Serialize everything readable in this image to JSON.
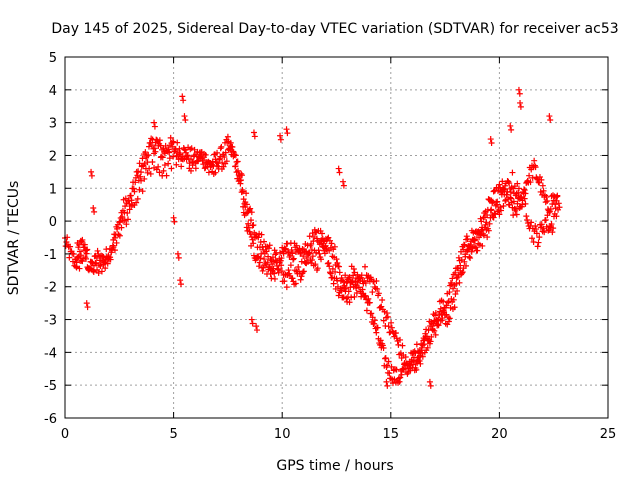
{
  "chart_data": {
    "type": "scatter",
    "title": "Day 145 of 2025, Sidereal Day-to-day VTEC variation (SDTVAR) for receiver ac53",
    "xlabel": "GPS time / hours",
    "ylabel": "SDTVAR / TECUs",
    "xlim": [
      0,
      25
    ],
    "ylim": [
      -6,
      5
    ],
    "x_ticks": [
      0,
      5,
      10,
      15,
      20,
      25
    ],
    "y_ticks": [
      -6,
      -5,
      -4,
      -3,
      -2,
      -1,
      0,
      1,
      2,
      3,
      4,
      5
    ],
    "grid": true,
    "marker": "+",
    "marker_color": "#ff0000",
    "approx_track_points": [
      [
        0.0,
        -0.6
      ],
      [
        0.3,
        -1.1
      ],
      [
        0.6,
        -1.3
      ],
      [
        0.9,
        -1.0
      ],
      [
        1.2,
        -1.5
      ],
      [
        1.5,
        -1.1
      ],
      [
        1.8,
        -1.2
      ],
      [
        2.1,
        -0.9
      ],
      [
        2.4,
        -0.3
      ],
      [
        2.7,
        0.4
      ],
      [
        3.0,
        0.6
      ],
      [
        3.3,
        1.3
      ],
      [
        3.6,
        1.8
      ],
      [
        3.9,
        2.2
      ],
      [
        4.2,
        2.4
      ],
      [
        4.5,
        2.1
      ],
      [
        4.8,
        2.3
      ],
      [
        5.1,
        2.2
      ],
      [
        5.4,
        2.1
      ],
      [
        5.7,
        2.0
      ],
      [
        6.0,
        1.9
      ],
      [
        6.3,
        2.0
      ],
      [
        6.6,
        1.7
      ],
      [
        6.9,
        1.8
      ],
      [
        7.2,
        2.0
      ],
      [
        7.5,
        2.3
      ],
      [
        7.8,
        2.0
      ],
      [
        8.1,
        1.0
      ],
      [
        8.4,
        -0.2
      ],
      [
        8.7,
        -0.9
      ],
      [
        9.0,
        -1.2
      ],
      [
        9.3,
        -1.4
      ],
      [
        9.6,
        -1.6
      ],
      [
        9.9,
        -1.2
      ],
      [
        10.2,
        -0.8
      ],
      [
        10.5,
        -0.9
      ],
      [
        10.8,
        -1.1
      ],
      [
        11.1,
        -0.9
      ],
      [
        11.4,
        -0.6
      ],
      [
        11.7,
        -0.4
      ],
      [
        12.0,
        -0.8
      ],
      [
        12.3,
        -1.6
      ],
      [
        12.6,
        -2.0
      ],
      [
        12.9,
        -1.8
      ],
      [
        13.2,
        -1.6
      ],
      [
        13.5,
        -1.9
      ],
      [
        13.8,
        -2.3
      ],
      [
        14.1,
        -2.8
      ],
      [
        14.4,
        -3.5
      ],
      [
        14.7,
        -4.2
      ],
      [
        15.0,
        -4.6
      ],
      [
        15.3,
        -4.8
      ],
      [
        15.6,
        -4.6
      ],
      [
        15.9,
        -4.3
      ],
      [
        16.2,
        -4.0
      ],
      [
        16.5,
        -3.8
      ],
      [
        16.8,
        -3.5
      ],
      [
        17.1,
        -3.2
      ],
      [
        17.4,
        -2.8
      ],
      [
        17.7,
        -2.2
      ],
      [
        18.0,
        -1.6
      ],
      [
        18.3,
        -1.0
      ],
      [
        18.6,
        -0.6
      ],
      [
        18.9,
        -0.4
      ],
      [
        19.2,
        -0.1
      ],
      [
        19.5,
        0.4
      ],
      [
        19.8,
        0.7
      ],
      [
        20.1,
        1.0
      ],
      [
        20.4,
        0.6
      ],
      [
        20.7,
        0.3
      ],
      [
        21.0,
        0.6
      ],
      [
        21.3,
        1.3
      ],
      [
        21.6,
        1.6
      ],
      [
        21.9,
        1.1
      ],
      [
        22.2,
        0.4
      ],
      [
        22.5,
        0.7
      ],
      [
        22.8,
        0.4
      ]
    ],
    "approx_secondary_points": [
      [
        0.5,
        -1.0
      ],
      [
        0.8,
        -0.8
      ],
      [
        1.1,
        -1.2
      ],
      [
        1.7,
        -1.4
      ],
      [
        2.3,
        -0.6
      ],
      [
        2.9,
        0.2
      ],
      [
        3.5,
        1.0
      ],
      [
        4.1,
        1.9
      ],
      [
        4.6,
        1.6
      ],
      [
        5.2,
        2.0
      ],
      [
        5.8,
        1.8
      ],
      [
        6.4,
        1.8
      ],
      [
        7.0,
        1.7
      ],
      [
        7.6,
        2.2
      ],
      [
        8.0,
        1.6
      ],
      [
        8.3,
        0.7
      ],
      [
        8.6,
        0.0
      ],
      [
        8.9,
        -0.6
      ],
      [
        9.2,
        -0.8
      ],
      [
        9.5,
        -1.0
      ],
      [
        9.8,
        -1.3
      ],
      [
        10.1,
        -1.8
      ],
      [
        10.4,
        -1.6
      ],
      [
        10.7,
        -1.7
      ],
      [
        11.0,
        -1.3
      ],
      [
        11.3,
        -1.0
      ],
      [
        11.6,
        -1.2
      ],
      [
        11.9,
        -0.9
      ],
      [
        12.2,
        -0.6
      ],
      [
        12.5,
        -1.2
      ],
      [
        12.8,
        -2.4
      ],
      [
        13.1,
        -2.2
      ],
      [
        13.4,
        -2.0
      ],
      [
        13.7,
        -1.6
      ],
      [
        14.0,
        -1.8
      ],
      [
        14.3,
        -2.0
      ],
      [
        14.6,
        -2.6
      ],
      [
        14.9,
        -3.2
      ],
      [
        15.2,
        -3.5
      ],
      [
        15.5,
        -4.0
      ],
      [
        15.8,
        -4.5
      ],
      [
        16.1,
        -4.4
      ],
      [
        16.4,
        -4.0
      ],
      [
        16.7,
        -3.4
      ],
      [
        17.0,
        -3.0
      ],
      [
        17.3,
        -2.6
      ],
      [
        17.6,
        -2.9
      ],
      [
        17.9,
        -2.5
      ],
      [
        18.2,
        -1.5
      ],
      [
        18.5,
        -1.2
      ],
      [
        18.8,
        -0.8
      ],
      [
        19.1,
        -0.6
      ],
      [
        19.4,
        -0.3
      ],
      [
        19.7,
        0.2
      ],
      [
        20.0,
        0.4
      ],
      [
        20.3,
        0.9
      ],
      [
        20.6,
        1.2
      ],
      [
        20.9,
        0.8
      ],
      [
        21.2,
        0.5
      ],
      [
        21.5,
        -0.3
      ],
      [
        21.8,
        -0.5
      ],
      [
        22.1,
        0.0
      ],
      [
        22.4,
        -0.2
      ],
      [
        22.7,
        0.6
      ]
    ],
    "approx_outlier_points": [
      [
        5.4,
        3.8
      ],
      [
        5.5,
        3.2
      ],
      [
        4.1,
        3.0
      ],
      [
        5.0,
        0.1
      ],
      [
        5.3,
        -1.8
      ],
      [
        5.2,
        -1.0
      ],
      [
        8.7,
        2.7
      ],
      [
        9.9,
        2.6
      ],
      [
        10.2,
        2.8
      ],
      [
        8.6,
        -3.0
      ],
      [
        8.8,
        -3.2
      ],
      [
        1.2,
        1.5
      ],
      [
        1.3,
        0.4
      ],
      [
        1.0,
        -2.5
      ],
      [
        19.6,
        2.5
      ],
      [
        20.5,
        2.9
      ],
      [
        20.9,
        4.0
      ],
      [
        20.95,
        3.6
      ],
      [
        22.3,
        3.2
      ],
      [
        14.8,
        -4.9
      ],
      [
        16.8,
        -4.9
      ],
      [
        12.6,
        1.6
      ],
      [
        12.8,
        1.2
      ]
    ]
  }
}
